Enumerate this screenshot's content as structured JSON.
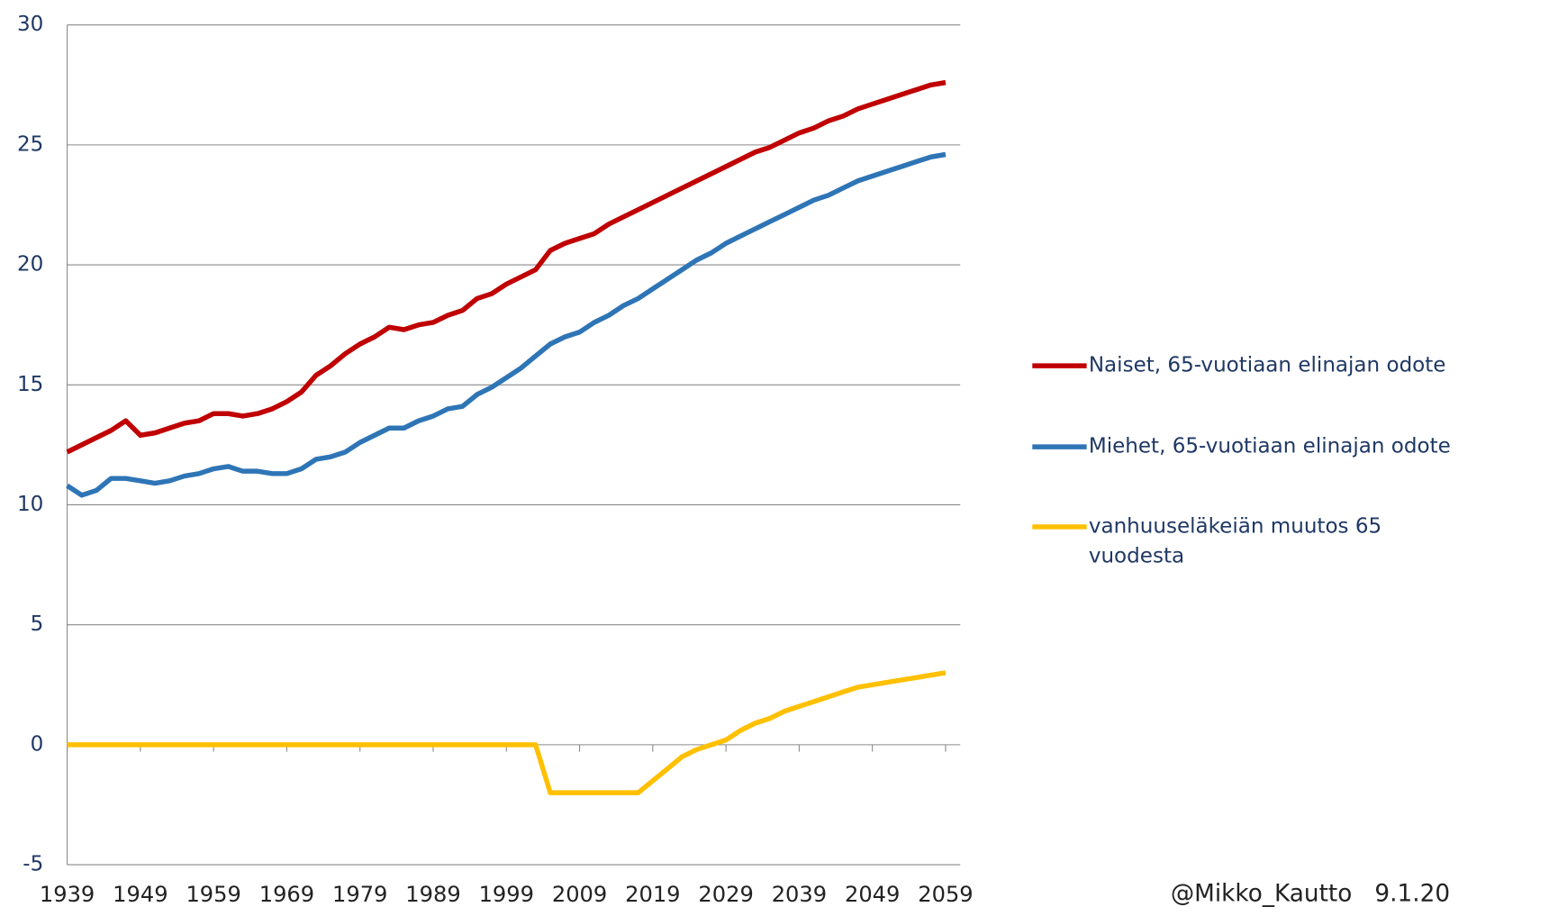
{
  "chart_data": {
    "type": "line",
    "x": [
      1939,
      1941,
      1943,
      1945,
      1947,
      1949,
      1951,
      1953,
      1955,
      1957,
      1959,
      1961,
      1963,
      1965,
      1967,
      1969,
      1971,
      1973,
      1975,
      1977,
      1979,
      1981,
      1983,
      1985,
      1987,
      1989,
      1991,
      1993,
      1995,
      1997,
      1999,
      2001,
      2003,
      2005,
      2007,
      2009,
      2011,
      2013,
      2015,
      2017,
      2019,
      2021,
      2023,
      2025,
      2027,
      2029,
      2031,
      2033,
      2035,
      2037,
      2039,
      2041,
      2043,
      2045,
      2047,
      2049,
      2051,
      2053,
      2055,
      2057,
      2059
    ],
    "series": [
      {
        "name": "Naiset, 65-vuotiaan elinajan odote",
        "color": "#c00000",
        "values": [
          12.2,
          12.5,
          12.8,
          13.1,
          13.5,
          12.9,
          13.0,
          13.2,
          13.4,
          13.5,
          13.8,
          13.8,
          13.7,
          13.8,
          14.0,
          14.3,
          14.7,
          15.4,
          15.8,
          16.3,
          16.7,
          17.0,
          17.4,
          17.3,
          17.5,
          17.6,
          17.9,
          18.1,
          18.6,
          18.8,
          19.2,
          19.5,
          19.8,
          20.6,
          20.9,
          21.1,
          21.3,
          21.7,
          22.0,
          22.3,
          22.6,
          22.9,
          23.2,
          23.5,
          23.8,
          24.1,
          24.4,
          24.7,
          24.9,
          25.2,
          25.5,
          25.7,
          26.0,
          26.2,
          26.5,
          26.7,
          26.9,
          27.1,
          27.3,
          27.5,
          27.6
        ]
      },
      {
        "name": "Miehet, 65-vuotiaan elinajan odote",
        "color": "#2e75b6",
        "values": [
          10.8,
          10.4,
          10.6,
          11.1,
          11.1,
          11.0,
          10.9,
          11.0,
          11.2,
          11.3,
          11.5,
          11.6,
          11.4,
          11.4,
          11.3,
          11.3,
          11.5,
          11.9,
          12.0,
          12.2,
          12.6,
          12.9,
          13.2,
          13.2,
          13.5,
          13.7,
          14.0,
          14.1,
          14.6,
          14.9,
          15.3,
          15.7,
          16.2,
          16.7,
          17.0,
          17.2,
          17.6,
          17.9,
          18.3,
          18.6,
          19.0,
          19.4,
          19.8,
          20.2,
          20.5,
          20.9,
          21.2,
          21.5,
          21.8,
          22.1,
          22.4,
          22.7,
          22.9,
          23.2,
          23.5,
          23.7,
          23.9,
          24.1,
          24.3,
          24.5,
          24.6
        ]
      },
      {
        "name": "vanhuuseläkeiän muutos 65 vuodesta",
        "color": "#ffc000",
        "values": [
          0,
          0,
          0,
          0,
          0,
          0,
          0,
          0,
          0,
          0,
          0,
          0,
          0,
          0,
          0,
          0,
          0,
          0,
          0,
          0,
          0,
          0,
          0,
          0,
          0,
          0,
          0,
          0,
          0,
          0,
          0,
          0,
          0,
          -2,
          -2,
          -2,
          -2,
          -2,
          -2,
          -2,
          -1.5,
          -1.0,
          -0.5,
          -0.2,
          0,
          0.2,
          0.6,
          0.9,
          1.1,
          1.4,
          1.6,
          1.8,
          2.0,
          2.2,
          2.4,
          2.5,
          2.6,
          2.7,
          2.8,
          2.9,
          3.0
        ]
      }
    ],
    "xlim": [
      1939,
      2061
    ],
    "xticks": [
      1939,
      1949,
      1959,
      1969,
      1979,
      1989,
      1999,
      2009,
      2019,
      2029,
      2039,
      2049,
      2059
    ],
    "ylim": [
      -5,
      30
    ],
    "yticks": [
      -5,
      0,
      5,
      10,
      15,
      20,
      25,
      30
    ],
    "grid": true,
    "annotation": "@Mikko_Kautto   9.1.20"
  }
}
